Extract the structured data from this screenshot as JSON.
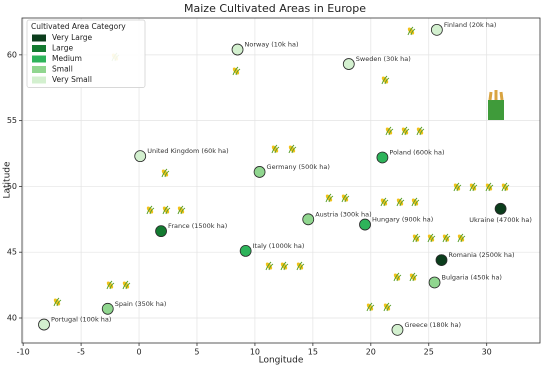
{
  "chart_data": {
    "type": "scatter",
    "title": "Maize Cultivated Areas in Europe",
    "x_label": "Longitude",
    "y_label": "Latitude",
    "xlim": [
      -10.1,
      34.6
    ],
    "ylim": [
      38.1,
      62.8
    ],
    "xticks": [
      -10,
      -5,
      0,
      5,
      10,
      15,
      20,
      25,
      30
    ],
    "yticks": [
      40,
      45,
      50,
      55,
      60
    ],
    "grid": true,
    "legend_title": "Cultivated Area Category",
    "legend_position": "upper left",
    "series": [
      {
        "name": "Very Large",
        "color": "#0b3d1c",
        "x": [
          31.2,
          26.1
        ],
        "y": [
          48.3,
          44.4
        ],
        "labels": [
          "Ukraine (4700k ha)",
          "Romania (2500k ha)"
        ]
      },
      {
        "name": "Large",
        "color": "#137a30",
        "x": [
          1.9
        ],
        "y": [
          46.6
        ],
        "labels": [
          "France (1500k ha)"
        ]
      },
      {
        "name": "Medium",
        "color": "#2db35a",
        "x": [
          21.0,
          19.5,
          9.2
        ],
        "y": [
          52.2,
          47.1,
          45.1
        ],
        "labels": [
          "Poland (600k ha)",
          "Hungary (900k ha)",
          "Italy (1000k ha)"
        ]
      },
      {
        "name": "Small",
        "color": "#90d68f",
        "x": [
          10.4,
          14.6,
          25.5,
          -2.7
        ],
        "y": [
          51.1,
          47.5,
          42.7,
          40.7
        ],
        "labels": [
          "Germany (500k ha)",
          "Austria (300k ha)",
          "Bulgaria (450k ha)",
          "Spain (350k ha)"
        ]
      },
      {
        "name": "Very Small",
        "color": "#d3f0cf",
        "x": [
          25.7,
          8.5,
          18.1,
          0.1,
          -8.2,
          22.3
        ],
        "y": [
          61.9,
          60.4,
          59.3,
          52.3,
          39.5,
          39.1
        ],
        "labels": [
          "Finland (20k ha)",
          "Norway (10k ha)",
          "Sweden (30k ha)",
          "United Kingdom (60k ha)",
          "Portugal (100k ha)",
          "Greece (180k ha)"
        ]
      }
    ]
  }
}
